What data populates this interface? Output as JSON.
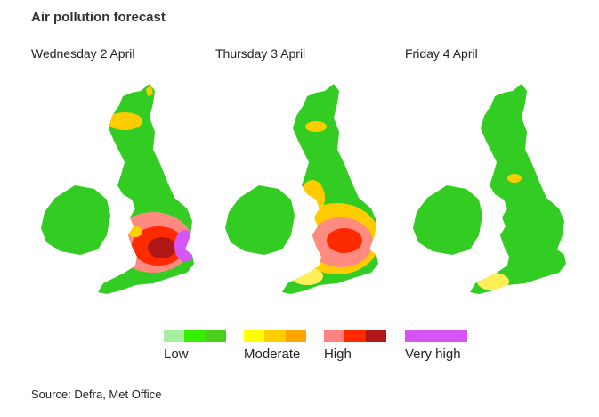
{
  "title": "Air pollution forecast",
  "days": [
    {
      "label": "Wednesday 2 April"
    },
    {
      "label": "Thursday 3 April"
    },
    {
      "label": "Friday 4 April"
    }
  ],
  "legend": {
    "low": {
      "label": "Low",
      "colors": [
        "#a8eda0",
        "#33f000",
        "#4cce1c"
      ]
    },
    "moderate": {
      "label": "Moderate",
      "colors": [
        "#ffff00",
        "#ffce00",
        "#ffa500"
      ]
    },
    "high": {
      "label": "High",
      "colors": [
        "#ff8080",
        "#ff2a00",
        "#b01818"
      ]
    },
    "very_high": {
      "label": "Very high",
      "colors": [
        "#d556f5"
      ]
    }
  },
  "source": "Source: Defra, Met Office"
}
